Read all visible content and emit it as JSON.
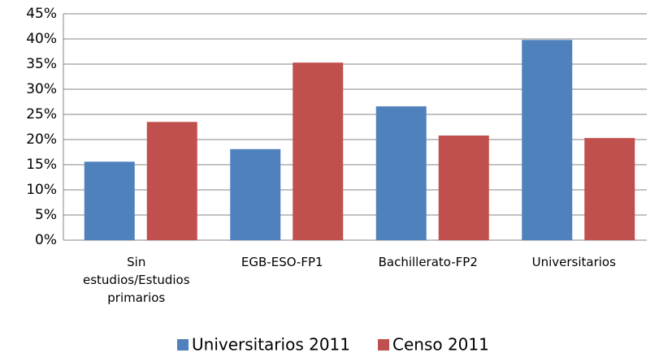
{
  "chart_data": {
    "type": "bar",
    "categories": [
      "Sin estudios/Estudios primarios",
      "EGB-ESO-FP1",
      "Bachillerato-FP2",
      "Universitarios"
    ],
    "series": [
      {
        "name": "Universitarios 2011",
        "color": "#4f81bd",
        "values": [
          15.6,
          18.1,
          26.6,
          39.8
        ]
      },
      {
        "name": "Censo 2011",
        "color": "#c0504d",
        "values": [
          23.5,
          35.3,
          20.8,
          20.3
        ]
      }
    ],
    "ylim": [
      0,
      45
    ],
    "yticks": [
      {
        "value": 0,
        "label": "0%"
      },
      {
        "value": 5,
        "label": "5%"
      },
      {
        "value": 10,
        "label": "10%"
      },
      {
        "value": 15,
        "label": "15%"
      },
      {
        "value": 20,
        "label": "20%"
      },
      {
        "value": 25,
        "label": "25%"
      },
      {
        "value": 30,
        "label": "30%"
      },
      {
        "value": 35,
        "label": "35%"
      },
      {
        "value": 40,
        "label": "40%"
      },
      {
        "value": 45,
        "label": "45%"
      }
    ],
    "grid": true,
    "legend": "bottom"
  }
}
